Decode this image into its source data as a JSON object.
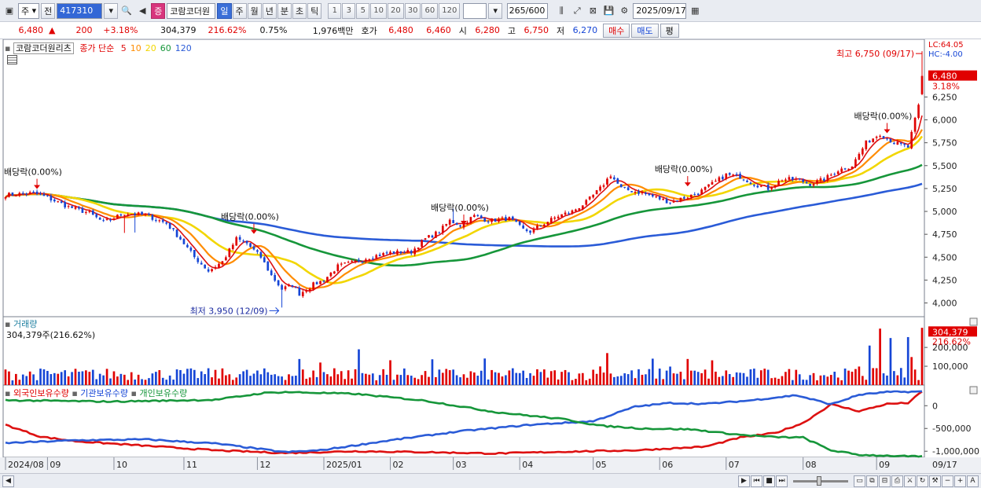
{
  "toolbar": {
    "period_unit": "주",
    "prev_label": "전",
    "code": "417310",
    "stock_name": "코람코더원",
    "tabs": [
      "일",
      "주",
      "월",
      "년",
      "분",
      "초",
      "틱"
    ],
    "active_tab": "일",
    "numbers": [
      "1",
      "3",
      "5",
      "10",
      "20",
      "30",
      "60",
      "120"
    ],
    "count": "265",
    "count_total": "/600",
    "date": "2025/09/17"
  },
  "quote": {
    "price": "6,480",
    "arrow": "▲",
    "change": "200",
    "pct": "+3.18%",
    "volume": "304,379",
    "vol_ratio": "216.62%",
    "turnover_pct": "0.75%",
    "amount": "1,976백만",
    "bid_label": "호가",
    "ask": "6,480",
    "bid": "6,460",
    "open_label": "시",
    "open": "6,280",
    "high_label": "고",
    "high": "6,750",
    "low_label": "저",
    "low": "6,270",
    "buy_label": "매수",
    "sell_label": "매도",
    "trend_label": "평"
  },
  "price_panel": {
    "name": "코람코더원리츠",
    "ma_label": "종가 단순",
    "ma_periods": [
      "5",
      "10",
      "20",
      "60",
      "120"
    ],
    "ma_colors": [
      "#dd1111",
      "#ff8c00",
      "#f2d600",
      "#16963a",
      "#2a5bd7"
    ],
    "lc": "LC:64.05",
    "hc": "HC:-4.00",
    "current": "6,480",
    "current_pct": "3.18%",
    "yticks": [
      {
        "v": 4000,
        "t": "4,000"
      },
      {
        "v": 4250,
        "t": "4,250"
      },
      {
        "v": 4500,
        "t": "4,500"
      },
      {
        "v": 4750,
        "t": "4,750"
      },
      {
        "v": 5000,
        "t": "5,000"
      },
      {
        "v": 5250,
        "t": "5,250"
      },
      {
        "v": 5500,
        "t": "5,500"
      },
      {
        "v": 5750,
        "t": "5,750"
      },
      {
        "v": 6000,
        "t": "6,000"
      },
      {
        "v": 6250,
        "t": "6,250"
      }
    ],
    "ymin": 3850,
    "ymax": 6880,
    "annotations": [
      {
        "t": "최고 6,750 (09/17)",
        "x": 262,
        "y": 6750,
        "kind": "high"
      },
      {
        "t": "최저 3,950 (12/09)",
        "x": 79,
        "y": 3950,
        "kind": "low"
      },
      {
        "t": "배당락(0.00%)",
        "x": 9,
        "y": 5210,
        "kind": "div"
      },
      {
        "t": "배당락(0.00%)",
        "x": 71,
        "y": 4720,
        "kind": "div"
      },
      {
        "t": "배당락(0.00%)",
        "x": 131,
        "y": 4820,
        "kind": "div"
      },
      {
        "t": "배당락(0.00%)",
        "x": 195,
        "y": 5240,
        "kind": "div"
      },
      {
        "t": "배당락(0.00%)",
        "x": 252,
        "y": 5820,
        "kind": "div"
      }
    ]
  },
  "volume_panel": {
    "name": "거래량",
    "info": "304,379주(216.62%)",
    "current": "304,379",
    "current_pct": "216.62%",
    "yticks": [
      {
        "v": 100000,
        "t": "100,000"
      },
      {
        "v": 200000,
        "t": "200,000"
      }
    ],
    "ymax": 330000
  },
  "holdings_panel": {
    "series_labels": [
      "외국인보유수량",
      "기관보유수량",
      "개인보유수량"
    ],
    "colors": [
      "#dd1111",
      "#2a5bd7",
      "#16963a"
    ],
    "yticks": [
      {
        "v": 0,
        "t": "0"
      },
      {
        "v": -500000,
        "t": "-500,000"
      },
      {
        "v": -1000000,
        "t": "-1,000,000"
      }
    ],
    "ymin": -1100000,
    "ymax": 350000
  },
  "xaxis": {
    "labels": [
      {
        "i": 0,
        "t": "2024/08"
      },
      {
        "i": 12,
        "t": "09"
      },
      {
        "i": 31,
        "t": "10"
      },
      {
        "i": 51,
        "t": "11"
      },
      {
        "i": 72,
        "t": "12"
      },
      {
        "i": 91,
        "t": "2025/01"
      },
      {
        "i": 110,
        "t": "02"
      },
      {
        "i": 128,
        "t": "03"
      },
      {
        "i": 147,
        "t": "04"
      },
      {
        "i": 168,
        "t": "05"
      },
      {
        "i": 187,
        "t": "06"
      },
      {
        "i": 206,
        "t": "07"
      },
      {
        "i": 228,
        "t": "08"
      },
      {
        "i": 249,
        "t": "09"
      }
    ],
    "right_label": "09/17"
  },
  "chart_data": {
    "type": "line",
    "title": "코람코더원리츠",
    "note": "Daily candlestick with SMA 5/10/20/60/120, volume, and foreign/institution/individual holdings",
    "x_range": [
      "2024/08",
      "2025/09/17"
    ],
    "price_anchors": [
      [
        0,
        5180
      ],
      [
        8,
        5200
      ],
      [
        12,
        5150
      ],
      [
        18,
        5050
      ],
      [
        24,
        4980
      ],
      [
        28,
        4880
      ],
      [
        31,
        4930
      ],
      [
        34,
        4980
      ],
      [
        40,
        4960
      ],
      [
        46,
        4870
      ],
      [
        50,
        4700
      ],
      [
        54,
        4500
      ],
      [
        58,
        4350
      ],
      [
        62,
        4450
      ],
      [
        66,
        4700
      ],
      [
        69,
        4650
      ],
      [
        73,
        4500
      ],
      [
        76,
        4300
      ],
      [
        79,
        4150
      ],
      [
        82,
        4200
      ],
      [
        84,
        4100
      ],
      [
        88,
        4200
      ],
      [
        91,
        4250
      ],
      [
        95,
        4400
      ],
      [
        100,
        4450
      ],
      [
        104,
        4500
      ],
      [
        110,
        4550
      ],
      [
        116,
        4560
      ],
      [
        120,
        4700
      ],
      [
        124,
        4780
      ],
      [
        127,
        4900
      ],
      [
        130,
        4850
      ],
      [
        134,
        4950
      ],
      [
        138,
        4900
      ],
      [
        144,
        4920
      ],
      [
        148,
        4800
      ],
      [
        150,
        4780
      ],
      [
        154,
        4870
      ],
      [
        158,
        4950
      ],
      [
        162,
        5000
      ],
      [
        166,
        5100
      ],
      [
        170,
        5250
      ],
      [
        173,
        5400
      ],
      [
        176,
        5250
      ],
      [
        182,
        5200
      ],
      [
        186,
        5150
      ],
      [
        190,
        5100
      ],
      [
        194,
        5150
      ],
      [
        198,
        5200
      ],
      [
        202,
        5300
      ],
      [
        206,
        5400
      ],
      [
        210,
        5380
      ],
      [
        214,
        5300
      ],
      [
        218,
        5250
      ],
      [
        222,
        5350
      ],
      [
        226,
        5350
      ],
      [
        230,
        5300
      ],
      [
        234,
        5350
      ],
      [
        238,
        5450
      ],
      [
        242,
        5500
      ],
      [
        246,
        5750
      ],
      [
        250,
        5850
      ],
      [
        254,
        5750
      ],
      [
        258,
        5700
      ],
      [
        261,
        6150
      ],
      [
        262,
        6480
      ]
    ],
    "high": 6750,
    "high_date": "09/17",
    "low": 3950,
    "low_date": "12/09",
    "ex_dividend_marks": [
      "배당락(0.00%)"
    ],
    "volume_last": 304379,
    "volume_last_pct": 216.62,
    "holdings_anchors": {
      "foreign": [
        [
          0,
          -420000
        ],
        [
          10,
          -680000
        ],
        [
          20,
          -780000
        ],
        [
          40,
          -880000
        ],
        [
          60,
          -980000
        ],
        [
          80,
          -1040000
        ],
        [
          100,
          -1000000
        ],
        [
          120,
          -1020000
        ],
        [
          140,
          -1050000
        ],
        [
          160,
          -1010000
        ],
        [
          180,
          -980000
        ],
        [
          200,
          -900000
        ],
        [
          210,
          -700000
        ],
        [
          220,
          -600000
        ],
        [
          228,
          -380000
        ],
        [
          236,
          30000
        ],
        [
          244,
          -120000
        ],
        [
          252,
          40000
        ],
        [
          258,
          60000
        ],
        [
          262,
          310000
        ]
      ],
      "institution": [
        [
          0,
          -820000
        ],
        [
          20,
          -760000
        ],
        [
          40,
          -740000
        ],
        [
          60,
          -830000
        ],
        [
          80,
          -1020000
        ],
        [
          90,
          -980000
        ],
        [
          110,
          -760000
        ],
        [
          130,
          -560000
        ],
        [
          150,
          -420000
        ],
        [
          168,
          -340000
        ],
        [
          180,
          -20000
        ],
        [
          190,
          60000
        ],
        [
          200,
          40000
        ],
        [
          212,
          110000
        ],
        [
          226,
          230000
        ],
        [
          236,
          30000
        ],
        [
          244,
          240000
        ],
        [
          252,
          300000
        ],
        [
          262,
          310000
        ]
      ],
      "individual": [
        [
          0,
          120000
        ],
        [
          30,
          90000
        ],
        [
          60,
          130000
        ],
        [
          74,
          280000
        ],
        [
          80,
          300000
        ],
        [
          100,
          260000
        ],
        [
          120,
          110000
        ],
        [
          140,
          -140000
        ],
        [
          160,
          -300000
        ],
        [
          170,
          -440000
        ],
        [
          182,
          -500000
        ],
        [
          196,
          -520000
        ],
        [
          210,
          -640000
        ],
        [
          220,
          -690000
        ],
        [
          228,
          -700000
        ],
        [
          236,
          -980000
        ],
        [
          244,
          -1080000
        ],
        [
          262,
          -1120000
        ]
      ]
    }
  }
}
